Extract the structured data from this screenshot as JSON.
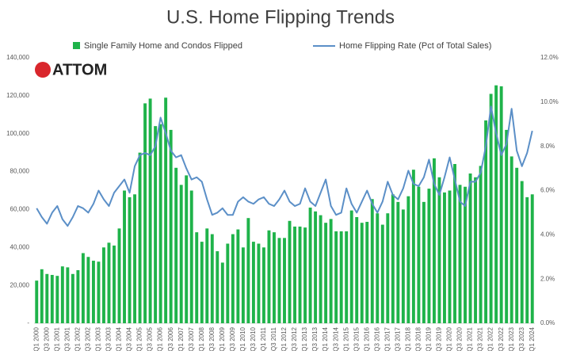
{
  "chart_data": {
    "type": "bar",
    "title": "U.S. Home Flipping Trends",
    "logo": "ATTOM",
    "categories": [
      "Q1 2000",
      null,
      "Q3 2000",
      null,
      "Q1 2001",
      null,
      "Q3 2001",
      null,
      "Q1 2002",
      null,
      "Q3 2002",
      null,
      "Q1 2003",
      null,
      "Q3 2003",
      null,
      "Q1 2004",
      null,
      "Q3 2004",
      null,
      "Q1 2005",
      null,
      "Q3 2005",
      null,
      "Q1 2006",
      null,
      "Q3 2006",
      null,
      "Q1 2007",
      null,
      "Q3 2007",
      null,
      "Q1 2008",
      null,
      "Q3 2008",
      null,
      "Q1 2009",
      null,
      "Q3 2009",
      null,
      "Q1 2010",
      null,
      "Q3 2010",
      null,
      "Q1 2011",
      null,
      "Q3 2011",
      null,
      "Q1 2012",
      null,
      "Q3 2012",
      null,
      "Q1 2013",
      null,
      "Q3 2013",
      null,
      "Q1 2014",
      null,
      "Q3 2014",
      null,
      "Q1 2015",
      null,
      "Q3 2015",
      null,
      "Q1 2016",
      null,
      "Q3 2016",
      null,
      "Q1 2017",
      null,
      "Q3 2017",
      null,
      "Q1 2018",
      null,
      "Q3 2018",
      null,
      "Q1 2019",
      null,
      "Q3 2019",
      null,
      "Q1 2020",
      null,
      "Q3 2020",
      null,
      "Q1 2021",
      null,
      "Q3 2021",
      null,
      "Q1 2022",
      null,
      "Q3 2022",
      null,
      "Q1 2023",
      null,
      "Q3 2023",
      null,
      "Q1 2024"
    ],
    "series": [
      {
        "name": "Single Family Home and Condos Flipped",
        "color": "#1fb34a",
        "values": [
          22500,
          28500,
          26000,
          25500,
          25000,
          30000,
          29500,
          26000,
          28000,
          37000,
          35000,
          33000,
          32500,
          40000,
          42500,
          41000,
          50000,
          70000,
          66500,
          68000,
          90000,
          116000,
          118500,
          104000,
          105000,
          119000,
          102000,
          82000,
          73000,
          78000,
          70000,
          48000,
          43000,
          50000,
          47000,
          38000,
          32000,
          42000,
          47000,
          49500,
          40000,
          55500,
          43000,
          42000,
          40000,
          49000,
          48000,
          45000,
          45000,
          54000,
          51000,
          51000,
          50500,
          61000,
          59000,
          57000,
          53000,
          55000,
          48500,
          48500,
          48500,
          59500,
          56000,
          53000,
          53500,
          65500,
          58000,
          52000,
          58000,
          68000,
          64000,
          60000,
          67000,
          81000,
          72000,
          64000,
          71000,
          87000,
          77000,
          69000,
          70000,
          84000,
          73000,
          72000,
          79000,
          77000,
          83000,
          107000,
          121000,
          125500,
          125000,
          102000,
          88000,
          82000,
          75000,
          66500,
          68000
        ]
      },
      {
        "name": "Home Flipping Rate (Pct of Total Sales)",
        "color": "#5b8fc7",
        "axis": "y2",
        "values": [
          5.2,
          4.8,
          4.5,
          5.0,
          5.3,
          4.7,
          4.4,
          4.8,
          5.3,
          5.2,
          5.0,
          5.4,
          6.0,
          5.6,
          5.3,
          5.9,
          6.2,
          6.5,
          5.9,
          7.1,
          7.6,
          7.7,
          7.6,
          8.0,
          9.3,
          8.6,
          7.8,
          7.5,
          7.6,
          7.0,
          6.5,
          6.6,
          6.4,
          5.6,
          4.9,
          5.0,
          5.2,
          4.9,
          4.9,
          5.5,
          5.7,
          5.5,
          5.4,
          5.6,
          5.7,
          5.4,
          5.3,
          5.6,
          6.0,
          5.5,
          5.3,
          5.4,
          6.1,
          5.5,
          5.3,
          5.9,
          6.5,
          5.3,
          4.9,
          5.0,
          6.1,
          5.4,
          5.0,
          5.5,
          6.0,
          5.4,
          5.0,
          5.5,
          6.4,
          5.8,
          5.6,
          6.1,
          6.9,
          6.3,
          6.2,
          6.6,
          7.4,
          6.3,
          5.8,
          6.6,
          7.5,
          6.5,
          5.5,
          5.3,
          6.4,
          6.4,
          6.8,
          8.0,
          9.8,
          8.6,
          7.6,
          8.1,
          9.7,
          7.8,
          7.1,
          7.7,
          8.7
        ]
      }
    ],
    "ylim": [
      0,
      140000
    ],
    "yticks": [
      {
        "value": 0,
        "label": "-"
      },
      {
        "value": 20000,
        "label": "20,000"
      },
      {
        "value": 40000,
        "label": "40,000"
      },
      {
        "value": 60000,
        "label": "60,000"
      },
      {
        "value": 80000,
        "label": "80,000"
      },
      {
        "value": 100000,
        "label": "100,000"
      },
      {
        "value": 120000,
        "label": "120,000"
      },
      {
        "value": 140000,
        "label": "140,000"
      }
    ],
    "y2lim": [
      0,
      12
    ],
    "y2ticks": [
      {
        "value": 0,
        "label": "0.0%"
      },
      {
        "value": 2,
        "label": "2.0%"
      },
      {
        "value": 4,
        "label": "4.0%"
      },
      {
        "value": 6,
        "label": "6.0%"
      },
      {
        "value": 8,
        "label": "8.0%"
      },
      {
        "value": 10,
        "label": "10.0%"
      },
      {
        "value": 12,
        "label": "12.0%"
      }
    ],
    "grid": false,
    "legend": "top"
  }
}
